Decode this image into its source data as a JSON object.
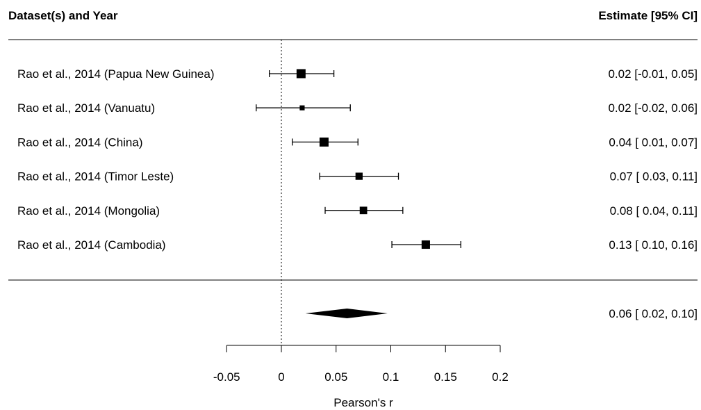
{
  "chart_data": {
    "type": "forest",
    "header": {
      "left": "Dataset(s) and Year",
      "right": "Estimate [95% CI]"
    },
    "studies": [
      {
        "label": "Rao et al., 2014 (Papua New Guinea)",
        "estimate": 0.018,
        "ci_low": -0.011,
        "ci_high": 0.048,
        "weight": 1.0,
        "text": "0.02 [-0.01, 0.05]"
      },
      {
        "label": "Rao et al., 2014 (Vanuatu)",
        "estimate": 0.019,
        "ci_low": -0.023,
        "ci_high": 0.063,
        "weight": 0.35,
        "text": "0.02 [-0.02, 0.06]"
      },
      {
        "label": "Rao et al., 2014 (China)",
        "estimate": 0.039,
        "ci_low": 0.01,
        "ci_high": 0.07,
        "weight": 1.0,
        "text": "0.04 [ 0.01, 0.07]"
      },
      {
        "label": "Rao et al., 2014 (Timor Leste)",
        "estimate": 0.071,
        "ci_low": 0.035,
        "ci_high": 0.107,
        "weight": 0.7,
        "text": "0.07 [ 0.03, 0.11]"
      },
      {
        "label": "Rao et al., 2014 (Mongolia)",
        "estimate": 0.075,
        "ci_low": 0.04,
        "ci_high": 0.111,
        "weight": 0.75,
        "text": "0.08 [ 0.04, 0.11]"
      },
      {
        "label": "Rao et al., 2014 (Cambodia)",
        "estimate": 0.132,
        "ci_low": 0.101,
        "ci_high": 0.164,
        "weight": 0.9,
        "text": "0.13 [ 0.10, 0.16]"
      }
    ],
    "summary": {
      "estimate": 0.06,
      "ci_low": 0.022,
      "ci_high": 0.097,
      "text": "0.06 [ 0.02, 0.10]"
    },
    "xaxis": {
      "label": "Pearson's r",
      "ticks": [
        -0.05,
        0,
        0.05,
        0.1,
        0.15,
        0.2
      ],
      "tick_labels": [
        "-0.05",
        "0",
        "0.05",
        "0.1",
        "0.15",
        "0.2"
      ],
      "xlim": [
        -0.05,
        0.2
      ]
    },
    "reference_line": 0
  }
}
